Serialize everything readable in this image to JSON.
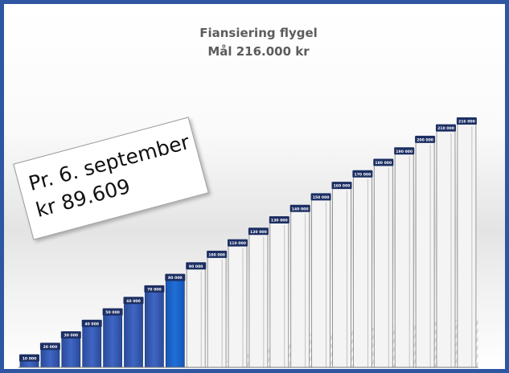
{
  "chart_data": {
    "type": "bar",
    "title": "Fiansiering flygel",
    "subtitle": "Mål 216.000 kr",
    "categories": [
      "10 000",
      "20 000",
      "30 000",
      "40 000",
      "50 000",
      "60 000",
      "70 000",
      "80 000",
      "90 000",
      "100 000",
      "110 000",
      "120 000",
      "130 000",
      "140 000",
      "150 000",
      "160 000",
      "170 000",
      "180 000",
      "190 000",
      "200 000",
      "210 000",
      "216 000"
    ],
    "values": [
      10000,
      20000,
      30000,
      40000,
      50000,
      60000,
      70000,
      80000,
      90000,
      100000,
      110000,
      120000,
      130000,
      140000,
      150000,
      160000,
      170000,
      180000,
      190000,
      200000,
      210000,
      216000
    ],
    "raised": 89609,
    "goal": 216000,
    "ylim": [
      0,
      216000
    ],
    "grid": false,
    "legend": "none",
    "colors": {
      "filled": "#3f66c4",
      "filled_dark": "#2a4b99",
      "current": "#1f6fd6",
      "empty_fill": "#f4f4f4",
      "empty_stroke": "#8a8a8a",
      "label_bg": "#1c2f63",
      "label_text": "#ffffff",
      "frame": "#2e56a1"
    }
  },
  "annotation": {
    "line1": "Pr. 6. september",
    "line2": "kr 89.609"
  }
}
